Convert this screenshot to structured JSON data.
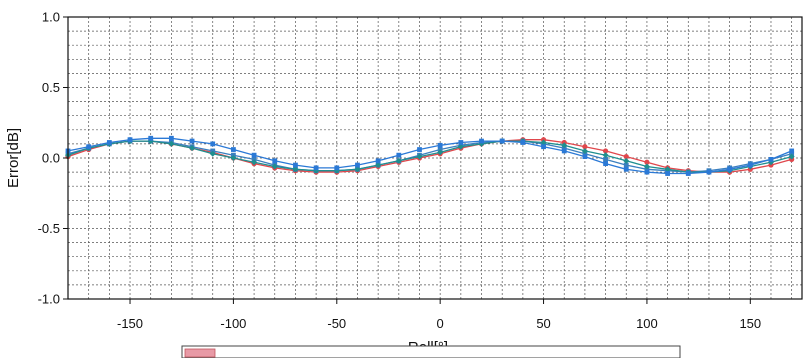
{
  "chart_data": {
    "type": "line",
    "xlabel": "Roll[°]",
    "ylabel": "Error[dB]",
    "xlim": [
      -180,
      175
    ],
    "ylim": [
      -1.0,
      1.0
    ],
    "grid": true,
    "xticks": [
      -150,
      -100,
      -50,
      0,
      50,
      100,
      150
    ],
    "yticks": [
      1.0,
      0.5,
      0.0,
      -0.5,
      -1.0
    ],
    "ytick_labels": [
      "1.0",
      "0.5",
      "0.0",
      "-0.5",
      "-1.0"
    ],
    "x": [
      -180,
      -170,
      -160,
      -150,
      -140,
      -130,
      -120,
      -110,
      -100,
      -90,
      -80,
      -70,
      -60,
      -50,
      -40,
      -30,
      -20,
      -10,
      0,
      10,
      20,
      30,
      40,
      50,
      60,
      70,
      80,
      90,
      100,
      110,
      120,
      130,
      140,
      150,
      160,
      170
    ],
    "series": [
      {
        "color": "#e0474c",
        "marker": "circle",
        "values": [
          0.01,
          0.06,
          0.1,
          0.12,
          0.12,
          0.1,
          0.07,
          0.04,
          0.0,
          -0.04,
          -0.07,
          -0.09,
          -0.1,
          -0.1,
          -0.09,
          -0.06,
          -0.03,
          0.0,
          0.03,
          0.07,
          0.1,
          0.12,
          0.13,
          0.13,
          0.11,
          0.08,
          0.05,
          0.01,
          -0.03,
          -0.07,
          -0.09,
          -0.1,
          -0.1,
          -0.08,
          -0.05,
          -0.01
        ]
      },
      {
        "color": "#3a7fbf",
        "marker": "square",
        "values": [
          0.03,
          0.07,
          0.1,
          0.12,
          0.12,
          0.11,
          0.08,
          0.05,
          0.02,
          -0.01,
          -0.05,
          -0.08,
          -0.09,
          -0.09,
          -0.08,
          -0.05,
          -0.02,
          0.02,
          0.06,
          0.09,
          0.11,
          0.12,
          0.12,
          0.1,
          0.07,
          0.03,
          -0.01,
          -0.05,
          -0.08,
          -0.09,
          -0.1,
          -0.09,
          -0.07,
          -0.04,
          -0.01,
          0.03
        ]
      },
      {
        "color": "#1f8f8f",
        "marker": "diamond",
        "values": [
          0.02,
          0.07,
          0.1,
          0.12,
          0.12,
          0.1,
          0.07,
          0.03,
          0.0,
          -0.03,
          -0.06,
          -0.08,
          -0.09,
          -0.09,
          -0.08,
          -0.05,
          -0.02,
          0.01,
          0.04,
          0.08,
          0.1,
          0.12,
          0.12,
          0.11,
          0.09,
          0.05,
          0.02,
          -0.02,
          -0.06,
          -0.08,
          -0.1,
          -0.1,
          -0.09,
          -0.06,
          -0.03,
          0.01
        ]
      },
      {
        "color": "#2b79d6",
        "marker": "square",
        "values": [
          0.05,
          0.08,
          0.11,
          0.13,
          0.14,
          0.14,
          0.12,
          0.1,
          0.06,
          0.02,
          -0.02,
          -0.05,
          -0.07,
          -0.07,
          -0.05,
          -0.02,
          0.02,
          0.06,
          0.09,
          0.11,
          0.12,
          0.12,
          0.11,
          0.08,
          0.05,
          0.01,
          -0.04,
          -0.08,
          -0.1,
          -0.11,
          -0.11,
          -0.1,
          -0.08,
          -0.05,
          -0.01,
          0.05
        ]
      }
    ]
  }
}
